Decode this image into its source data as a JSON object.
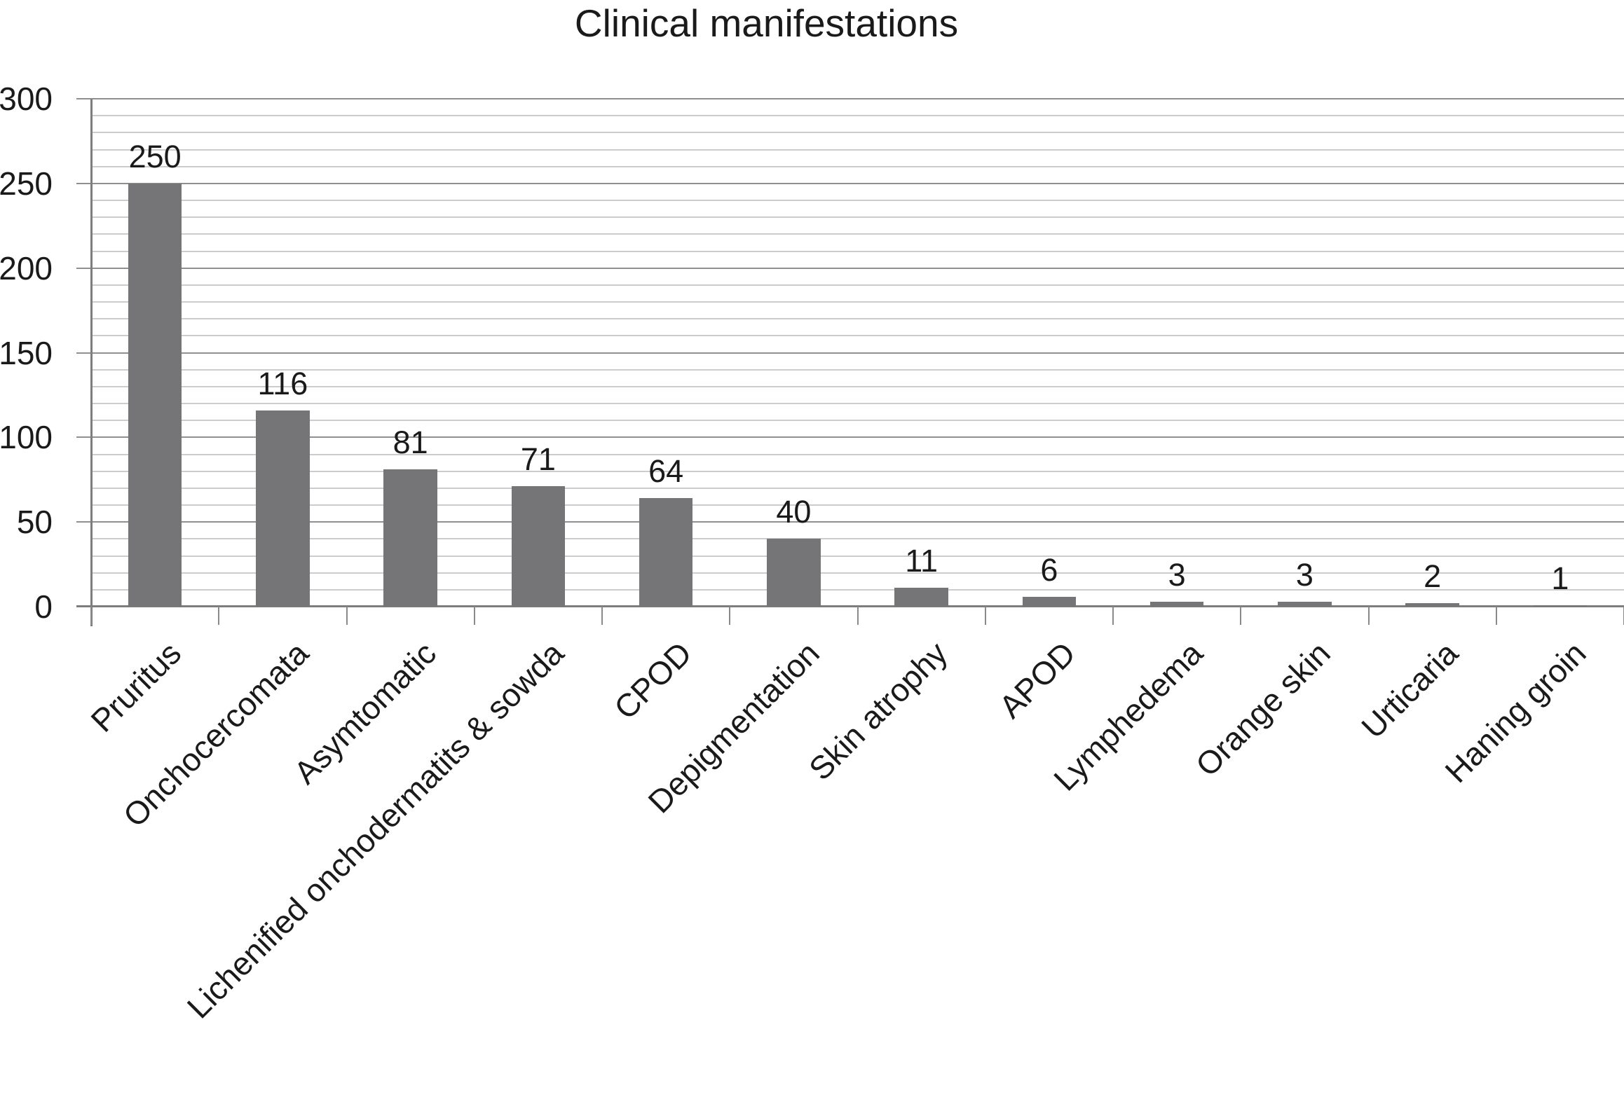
{
  "chart_data": {
    "type": "bar",
    "title": "Clinical manifestations",
    "categories": [
      "Pruritus",
      "Onchocercomata",
      "Asymtomatic",
      "Lichenified onchodermatits & sowda",
      "CPOD",
      "Depigmentation",
      "Skin atrophy",
      "APOD",
      "Lymphedema",
      "Orange skin",
      "Urticaria",
      "Haning groin"
    ],
    "values": [
      250,
      116,
      81,
      71,
      64,
      40,
      11,
      6,
      3,
      3,
      2,
      1
    ],
    "data_labels_shown": true,
    "xlabel": "",
    "ylabel": "",
    "ylim": [
      0,
      300
    ],
    "yticks": [
      0,
      50,
      100,
      150,
      200,
      250,
      300
    ],
    "minor_gridline_interval": 10,
    "major_gridline_interval": 50,
    "grid": true,
    "legend": false,
    "colors": {
      "bar_fill": "#757578",
      "major_gridline": "#8f8f8f",
      "minor_gridline": "#cccccc",
      "axis_line": "#7d7d7d",
      "text": "#1a1a1a",
      "background": "#ffffff"
    }
  }
}
